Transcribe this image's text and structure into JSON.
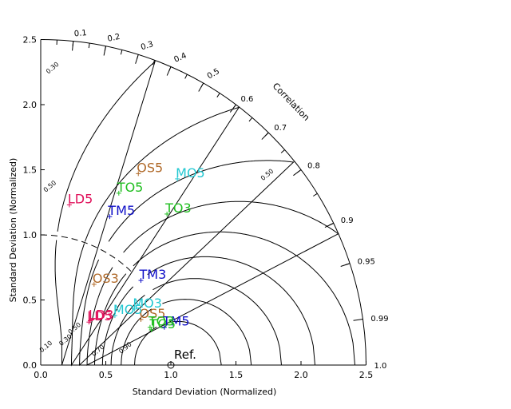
{
  "chart_data": {
    "type": "taylor-diagram",
    "xlabel": "Standard Deviation (Normalized)",
    "ylabel": "Standard Deviation (Normalized)",
    "arc_label": "Correlation",
    "xlim": [
      0,
      2.5
    ],
    "ylim": [
      0,
      2.5
    ],
    "std_ticks": [
      "0.0",
      "0.5",
      "1.0",
      "1.5",
      "2.0",
      "2.5"
    ],
    "std_tick_values": [
      0,
      0.5,
      1.0,
      1.5,
      2.0,
      2.5
    ],
    "correlation_labels": [
      "0.1",
      "0.2",
      "0.3",
      "0.4",
      "0.5",
      "0.6",
      "0.7",
      "0.8",
      "0.9",
      "0.95",
      "0.99",
      "1.0"
    ],
    "correlation_values": [
      0.1,
      0.2,
      0.3,
      0.4,
      0.5,
      0.6,
      0.7,
      0.8,
      0.9,
      0.95,
      0.99,
      1.0
    ],
    "skill_contours": [
      0.1,
      0.2,
      0.3,
      0.4,
      0.5,
      0.6,
      0.7,
      0.8,
      0.9
    ],
    "skill_contour_labels": [
      {
        "text": "0.10",
        "value": 0.1
      },
      {
        "text": "0.30",
        "value": 0.3
      },
      {
        "text": "0.50",
        "value": 0.5
      },
      {
        "text": "0.70",
        "value": 0.7
      },
      {
        "text": "0.90",
        "value": 0.9
      },
      {
        "text": "0.30",
        "value": 0.3
      },
      {
        "text": "0.50",
        "value": 0.5
      },
      {
        "text": "0.50",
        "value": 0.5
      }
    ],
    "reference": {
      "label": "Ref.",
      "x": 1.0,
      "y": 0.0
    },
    "points": [
      {
        "label": "OS5",
        "x": 0.75,
        "y": 1.47,
        "color": "#b06a2a"
      },
      {
        "label": "MO5",
        "x": 1.05,
        "y": 1.43,
        "color": "#22c8d2"
      },
      {
        "label": "TO5",
        "x": 0.6,
        "y": 1.32,
        "color": "#1fbe1f"
      },
      {
        "label": "LD5",
        "x": 0.22,
        "y": 1.23,
        "color": "#e0105a"
      },
      {
        "label": "TM5",
        "x": 0.53,
        "y": 1.14,
        "color": "#1010c8"
      },
      {
        "label": "TO3",
        "x": 0.97,
        "y": 1.16,
        "color": "#1fbe1f"
      },
      {
        "label": "OS3",
        "x": 0.41,
        "y": 0.62,
        "color": "#b06a2a"
      },
      {
        "label": "TM3",
        "x": 0.77,
        "y": 0.65,
        "color": "#1010c8"
      },
      {
        "label": "MO3",
        "x": 0.72,
        "y": 0.43,
        "color": "#22c8d2"
      },
      {
        "label": "OS5",
        "x": 0.77,
        "y": 0.35,
        "color": "#b06a2a"
      },
      {
        "label": "LD5",
        "x": 0.37,
        "y": 0.33,
        "color": "#e0105a"
      },
      {
        "label": "LD3",
        "x": 0.38,
        "y": 0.34,
        "color": "#e0105a"
      },
      {
        "label": "MO5",
        "x": 0.57,
        "y": 0.38,
        "color": "#22c8d2"
      },
      {
        "label": "TO5",
        "x": 0.85,
        "y": 0.27,
        "color": "#1fbe1f"
      },
      {
        "label": "TM5",
        "x": 0.95,
        "y": 0.29,
        "color": "#1010c8"
      },
      {
        "label": "TO3",
        "x": 0.84,
        "y": 0.29,
        "color": "#1fbe1f"
      }
    ]
  }
}
